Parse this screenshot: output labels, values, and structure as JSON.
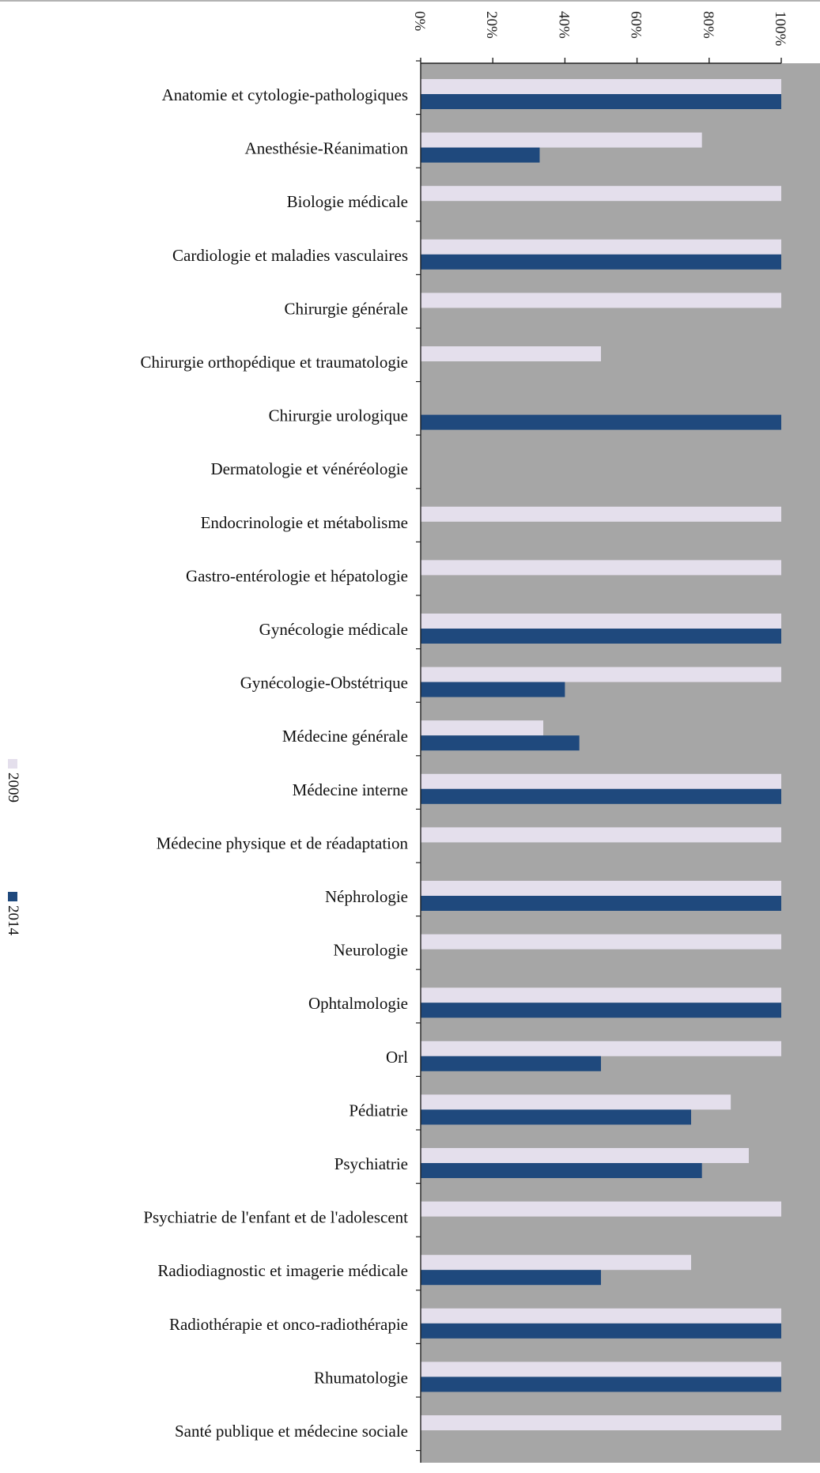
{
  "chart_data": {
    "type": "bar",
    "orientation": "horizontal",
    "categories": [
      "Anatomie et cytologie-pathologiques",
      "Anesthésie-Réanimation",
      "Biologie médicale",
      "Cardiologie et maladies vasculaires",
      "Chirurgie générale",
      "Chirurgie orthopédique et traumatologie",
      "Chirurgie urologique",
      "Dermatologie et vénéréologie",
      "Endocrinologie et métabolisme",
      "Gastro-entérologie et hépatologie",
      "Gynécologie médicale",
      "Gynécologie-Obstétrique",
      "Médecine générale",
      "Médecine interne",
      "Médecine physique et de réadaptation",
      "Néphrologie",
      "Neurologie",
      "Ophtalmologie",
      "Orl",
      "Pédiatrie",
      "Psychiatrie",
      "Psychiatrie de l'enfant et de l'adolescent",
      "Radiodiagnostic et imagerie médicale",
      "Radiothérapie et onco-radiothérapie",
      "Rhumatologie",
      "Santé publique et médecine sociale"
    ],
    "series": [
      {
        "name": "2009",
        "color": "#e4dfec",
        "values": [
          100,
          78,
          100,
          100,
          100,
          50,
          0,
          0,
          100,
          100,
          100,
          100,
          34,
          100,
          100,
          100,
          100,
          100,
          100,
          86,
          91,
          100,
          75,
          100,
          100,
          100
        ]
      },
      {
        "name": "2014",
        "color": "#1f497d",
        "values": [
          100,
          33,
          0,
          100,
          0,
          0,
          100,
          0,
          0,
          0,
          100,
          40,
          44,
          100,
          0,
          100,
          0,
          100,
          50,
          75,
          78,
          0,
          50,
          100,
          100,
          0
        ]
      }
    ],
    "xlim": [
      0,
      100
    ],
    "ticks": [
      "0%",
      "20%",
      "40%",
      "60%",
      "80%",
      "100%"
    ],
    "tick_values": [
      0,
      20,
      40,
      60,
      80,
      100
    ],
    "grid": false,
    "legend_position": "left",
    "plot_background": "#a6a6a6",
    "text_rotation": "90deg-clockwise"
  }
}
